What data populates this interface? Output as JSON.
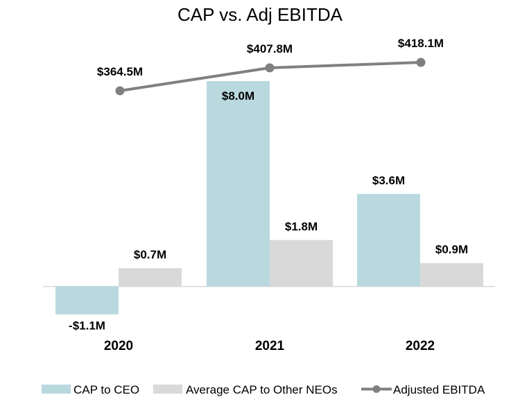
{
  "chart_data": {
    "type": "bar",
    "title": "CAP vs. Adj EBITDA",
    "categories": [
      "2020",
      "2021",
      "2022"
    ],
    "series": [
      {
        "name": "CAP to CEO",
        "kind": "bar",
        "color": "#b9d9df",
        "values": [
          -1.1,
          8.0,
          3.6
        ],
        "labels": [
          "-$1.1M",
          "$8.0M",
          "$3.6M"
        ]
      },
      {
        "name": "Average CAP to Other NEOs",
        "kind": "bar",
        "color": "#d9d9d9",
        "values": [
          0.7,
          1.8,
          0.9
        ],
        "labels": [
          "$0.7M",
          "$1.8M",
          "$0.9M"
        ]
      },
      {
        "name": "Adjusted EBITDA",
        "kind": "line",
        "color": "#808080",
        "values": [
          364.5,
          407.8,
          418.1
        ],
        "labels": [
          "$364.5M",
          "$407.8M",
          "$418.1M"
        ]
      }
    ],
    "bar_axis": {
      "ylim": [
        -1.1,
        8.0
      ],
      "unit": "$M"
    },
    "line_axis": {
      "ylim": [
        364.5,
        418.1
      ],
      "unit": "$M"
    },
    "legend_position": "bottom",
    "grid": false
  }
}
